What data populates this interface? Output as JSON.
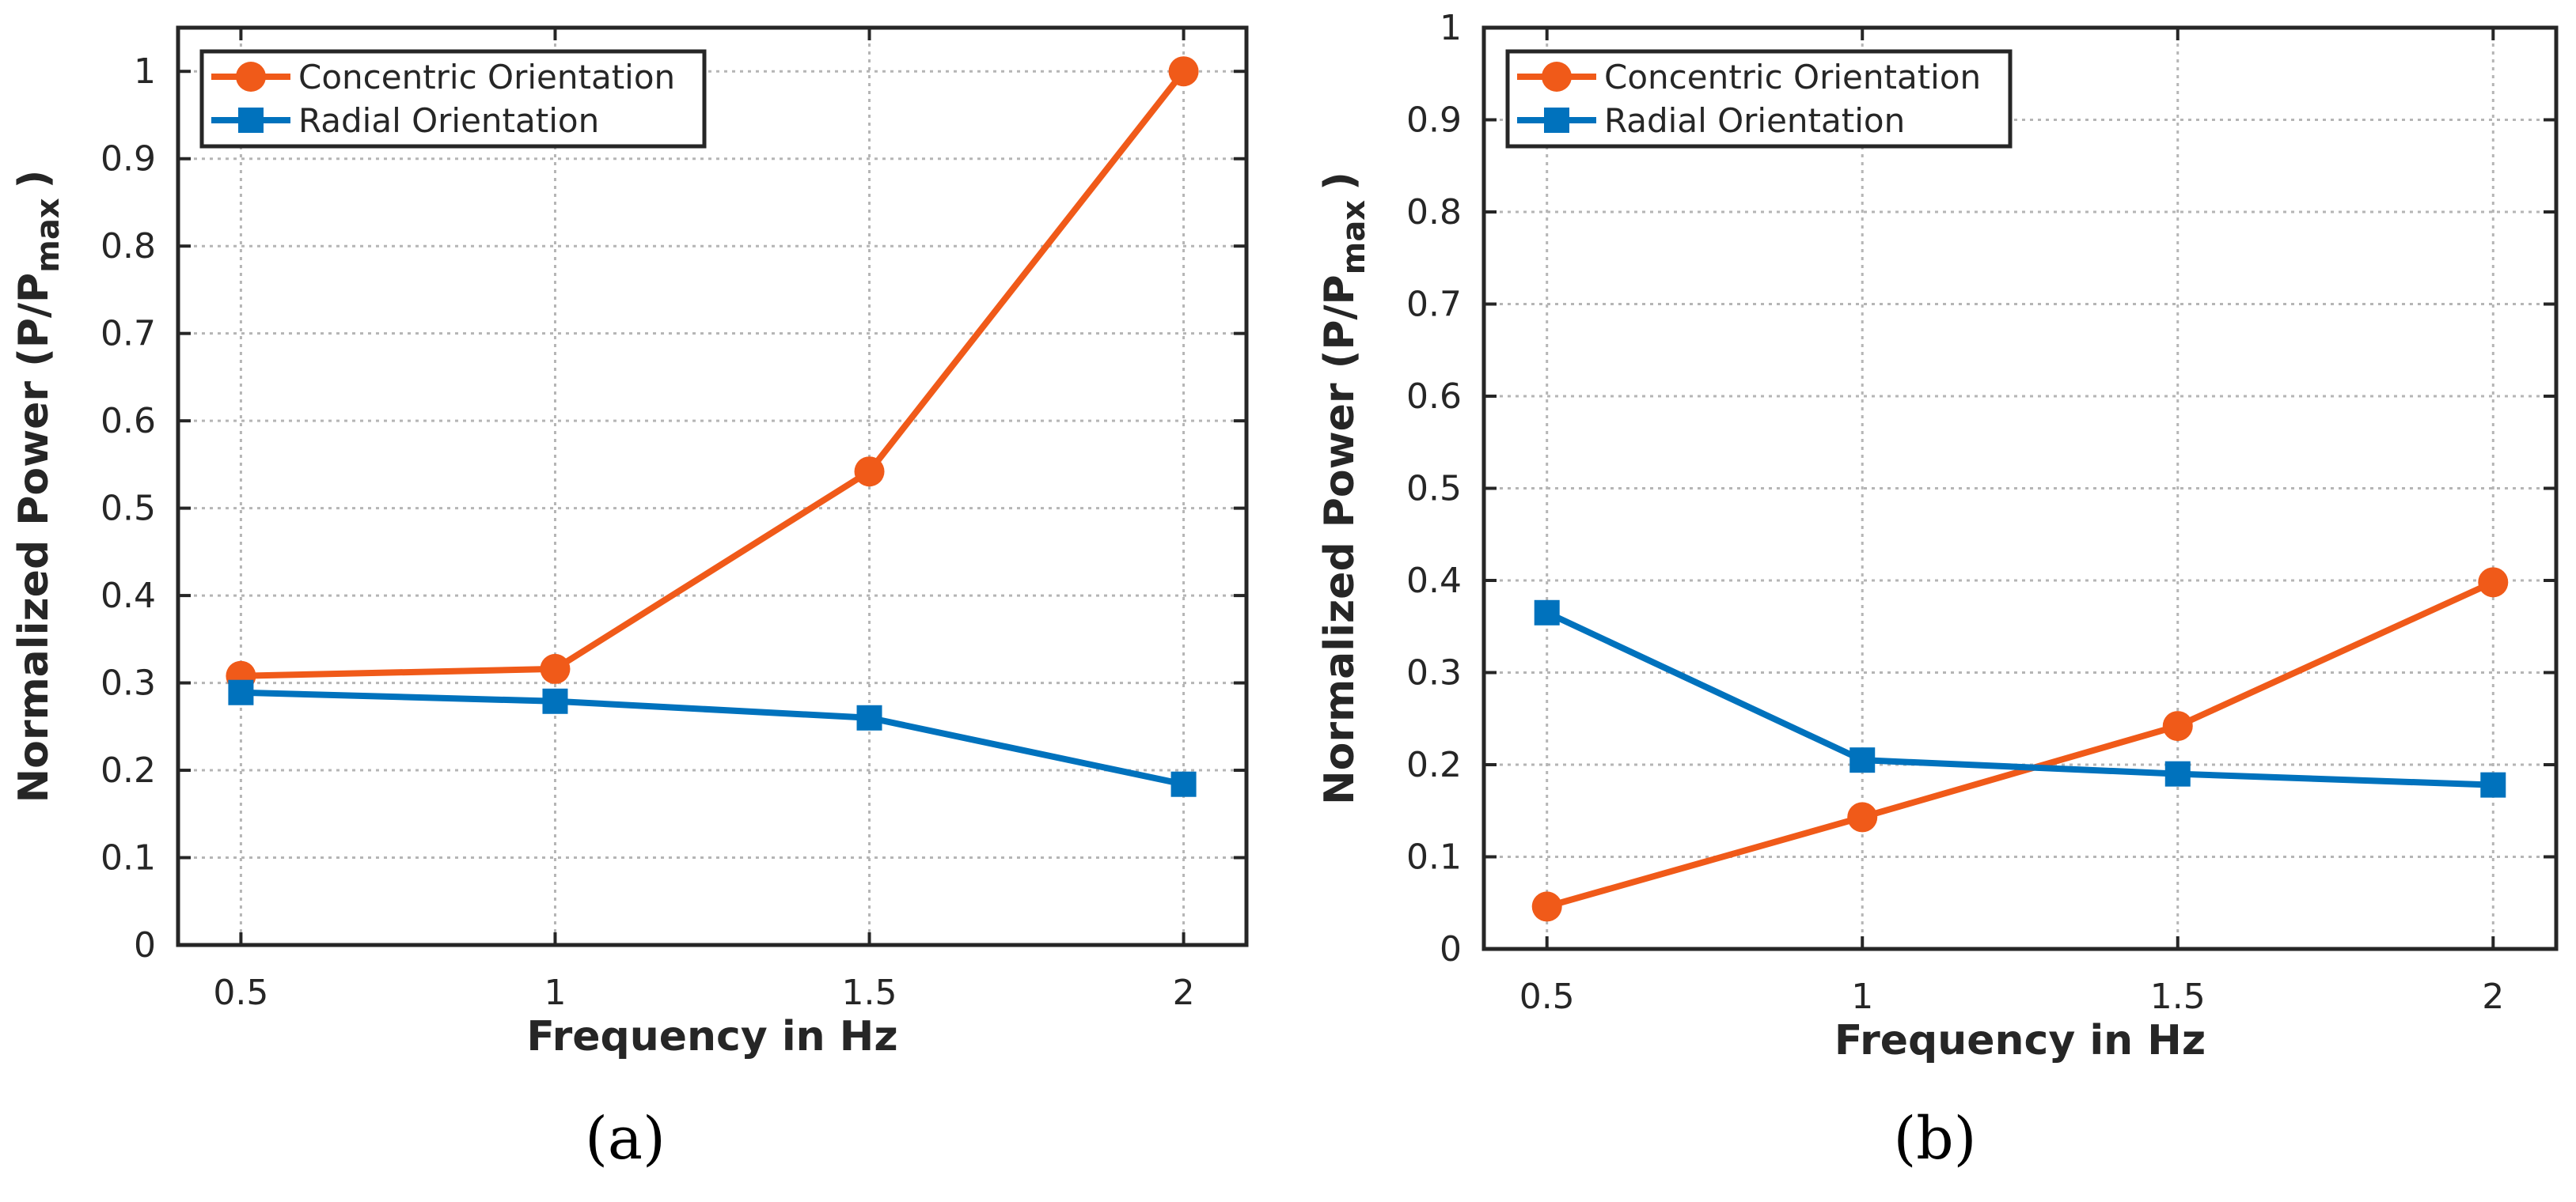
{
  "chart_data": [
    {
      "type": "line",
      "caption": "(a)",
      "xlabel": "Frequency in Hz",
      "ylabel_main": "Normalized Power (P/P",
      "ylabel_sub": "max",
      "ylabel_close": ")",
      "x": [
        0.5,
        1,
        1.5,
        2
      ],
      "x_tick_labels": [
        "0.5",
        "1",
        "1.5",
        "2"
      ],
      "xlim": [
        0.4,
        2.1
      ],
      "ylim": [
        0,
        1.05
      ],
      "y_ticks": [
        0,
        0.1,
        0.2,
        0.3,
        0.4,
        0.5,
        0.6,
        0.7,
        0.8,
        0.9,
        1
      ],
      "y_tick_labels": [
        "0",
        "0.1",
        "0.2",
        "0.3",
        "0.4",
        "0.5",
        "0.6",
        "0.7",
        "0.8",
        "0.9",
        "1"
      ],
      "grid": true,
      "legend_position": "top-left",
      "series": [
        {
          "name": "Concentric Orientation",
          "marker": "circle",
          "color": "#F05A19",
          "values": [
            0.308,
            0.316,
            0.542,
            1.0
          ]
        },
        {
          "name": "Radial Orientation",
          "marker": "square",
          "color": "#0072BD",
          "values": [
            0.289,
            0.279,
            0.26,
            0.184
          ]
        }
      ]
    },
    {
      "type": "line",
      "caption": "(b)",
      "xlabel": "Frequency in Hz",
      "ylabel_main": "Normalized Power (P/P",
      "ylabel_sub": "max",
      "ylabel_close": ")",
      "x": [
        0.5,
        1,
        1.5,
        2
      ],
      "x_tick_labels": [
        "0.5",
        "1",
        "1.5",
        "2"
      ],
      "xlim": [
        0.4,
        2.1
      ],
      "ylim": [
        0,
        1
      ],
      "y_ticks": [
        0,
        0.1,
        0.2,
        0.3,
        0.4,
        0.5,
        0.6,
        0.7,
        0.8,
        0.9,
        1
      ],
      "y_tick_labels": [
        "0",
        "0.1",
        "0.2",
        "0.3",
        "0.4",
        "0.5",
        "0.6",
        "0.7",
        "0.8",
        "0.9",
        "1"
      ],
      "grid": true,
      "legend_position": "top-left",
      "series": [
        {
          "name": "Concentric Orientation",
          "marker": "circle",
          "color": "#F05A19",
          "values": [
            0.046,
            0.143,
            0.242,
            0.398
          ]
        },
        {
          "name": "Radial Orientation",
          "marker": "square",
          "color": "#0072BD",
          "values": [
            0.365,
            0.205,
            0.19,
            0.178
          ]
        }
      ]
    }
  ]
}
